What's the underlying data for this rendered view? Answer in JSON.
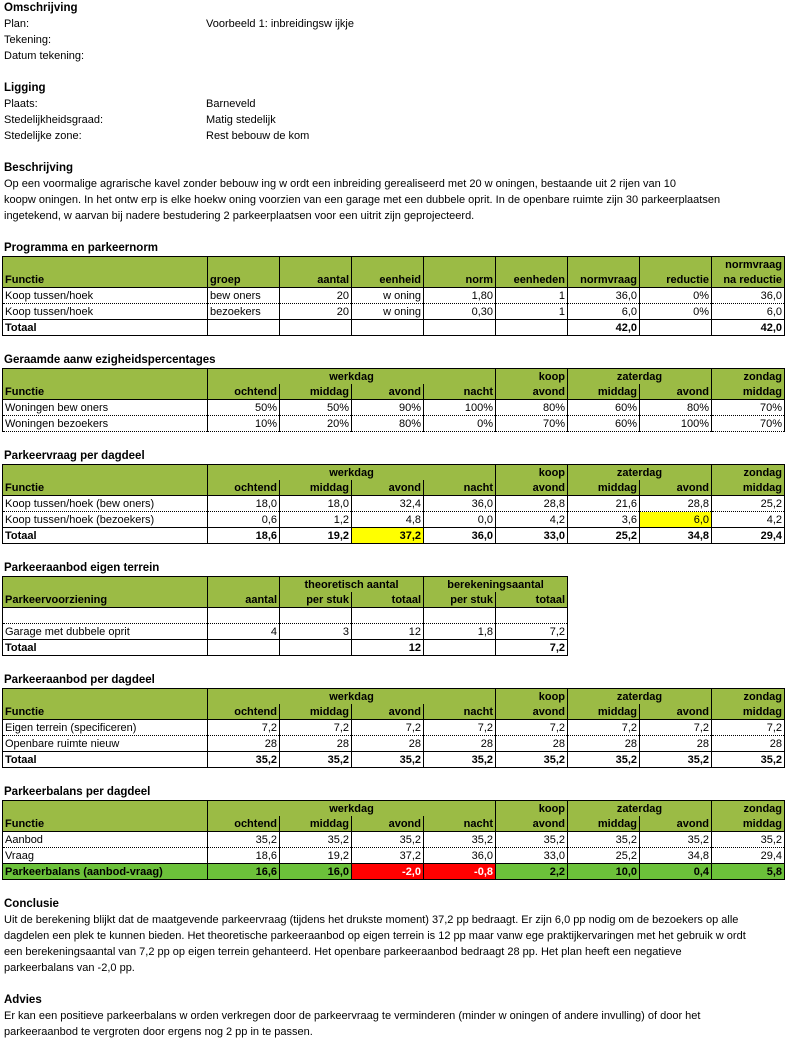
{
  "sections": [
    {
      "title": "Omschrijving",
      "fields": [
        {
          "label": "Plan:",
          "value": "Voorbeeld 1: inbreidingsw ijkje"
        },
        {
          "label": "Tekening:"
        },
        {
          "label": "Datum tekening:"
        }
      ]
    },
    {
      "title": "Ligging",
      "fields": [
        {
          "label": "Plaats:",
          "value": "Barneveld"
        },
        {
          "label": "Stedelijkheidsgraad:",
          "value": "Matig stedelijk"
        },
        {
          "label": "Stedelijke zone:",
          "value": "Rest bebouw de kom"
        }
      ]
    },
    {
      "title": "Beschrijving",
      "lines": [
        "Op een voormalige agrarische kavel zonder bebouw ing w ordt een inbreiding gerealiseerd met 20 w oningen, bestaande uit 2 rijen van 10",
        "koopw oningen. In het ontw erp is elke hoekw oning voorzien van een garage met een dubbele oprit. In de openbare ruimte zijn 30 parkeerplaatsen",
        "ingetekend, w aarvan bij nadere bestudering 2 parkeerplaatsen voor een uitrit zijn geprojecteerd."
      ]
    },
    {
      "title": "Programma en parkeernorm",
      "table": {
        "group_headers": [
          "normvraag"
        ],
        "columns": [
          "Functie",
          "groep",
          "aantal",
          "eenheid",
          "norm",
          "eenheden",
          "normvraag",
          "reductie",
          "na reductie"
        ],
        "rows": [
          [
            "Koop tussen/hoek",
            "bew oners",
            "20",
            "w oning",
            "1,80",
            "1",
            "36,0",
            "0%",
            "36,0"
          ],
          [
            "Koop tussen/hoek",
            "bezoekers",
            "20",
            "w oning",
            "0,30",
            "1",
            "6,0",
            "0%",
            "6,0"
          ],
          [
            "Totaal",
            null,
            null,
            null,
            null,
            null,
            "42,0",
            null,
            "42,0"
          ]
        ]
      }
    },
    {
      "title": "Geraamde aanw ezigheidspercentages",
      "table": {
        "group_headers": [
          "werkdag",
          "koop",
          "zaterdag",
          "zondag"
        ],
        "columns": [
          "Functie",
          "ochtend",
          "middag",
          "avond",
          "nacht",
          "avond",
          "middag",
          "avond",
          "middag"
        ],
        "rows": [
          [
            "Woningen bew oners",
            "50%",
            "50%",
            "90%",
            "100%",
            "80%",
            "60%",
            "80%",
            "70%"
          ],
          [
            "Woningen bezoekers",
            "10%",
            "20%",
            "80%",
            "0%",
            "70%",
            "60%",
            "100%",
            "70%"
          ]
        ]
      }
    },
    {
      "title": "Parkeervraag per dagdeel",
      "table": {
        "group_headers": [
          "werkdag",
          "koop",
          "zaterdag",
          "zondag"
        ],
        "columns": [
          "Functie",
          "ochtend",
          "middag",
          "avond",
          "nacht",
          "avond",
          "middag",
          "avond",
          "middag"
        ],
        "rows": [
          [
            "Koop tussen/hoek (bew oners)",
            "18,0",
            "18,0",
            "32,4",
            "36,0",
            "28,8",
            "21,6",
            "28,8",
            "25,2"
          ],
          [
            "Koop tussen/hoek (bezoekers)",
            "0,6",
            "1,2",
            "4,8",
            "0,0",
            "4,2",
            "3,6",
            "6,0",
            "4,2"
          ],
          [
            "Totaal",
            "18,6",
            "19,2",
            "37,2",
            "36,0",
            "33,0",
            "25,2",
            "34,8",
            "29,4"
          ]
        ]
      }
    },
    {
      "title": "Parkeeraanbod eigen terrein",
      "table": {
        "group_headers": [
          "theoretisch aantal",
          "berekeningsaantal"
        ],
        "columns": [
          "Parkeervoorziening",
          "aantal",
          "per stuk",
          "totaal",
          "per stuk",
          "totaal"
        ],
        "rows": [
          [
            null,
            null,
            null,
            null,
            null,
            null
          ],
          [
            "Garage met dubbele oprit",
            "4",
            "3",
            "12",
            "1,8",
            "7,2"
          ],
          [
            "Totaal",
            null,
            null,
            "12",
            null,
            "7,2"
          ]
        ]
      }
    },
    {
      "title": "Parkeeraanbod per dagdeel",
      "table": {
        "group_headers": [
          "werkdag",
          "koop",
          "zaterdag",
          "zondag"
        ],
        "columns": [
          "Functie",
          "ochtend",
          "middag",
          "avond",
          "nacht",
          "avond",
          "middag",
          "avond",
          "middag"
        ],
        "rows": [
          [
            "Eigen terrein (specificeren)",
            "7,2",
            "7,2",
            "7,2",
            "7,2",
            "7,2",
            "7,2",
            "7,2",
            "7,2"
          ],
          [
            "Openbare ruimte nieuw",
            "28",
            "28",
            "28",
            "28",
            "28",
            "28",
            "28",
            "28"
          ],
          [
            "Totaal",
            "35,2",
            "35,2",
            "35,2",
            "35,2",
            "35,2",
            "35,2",
            "35,2",
            "35,2"
          ]
        ]
      }
    },
    {
      "title": "Parkeerbalans per dagdeel",
      "table": {
        "group_headers": [
          "werkdag",
          "koop",
          "zaterdag",
          "zondag"
        ],
        "columns": [
          "Functie",
          "ochtend",
          "middag",
          "avond",
          "nacht",
          "avond",
          "middag",
          "avond",
          "middag"
        ],
        "rows": [
          [
            "Aanbod",
            "35,2",
            "35,2",
            "35,2",
            "35,2",
            "35,2",
            "35,2",
            "35,2",
            "35,2"
          ],
          [
            "Vraag",
            "18,6",
            "19,2",
            "37,2",
            "36,0",
            "33,0",
            "25,2",
            "34,8",
            "29,4"
          ],
          [
            "Parkeerbalans (aanbod-vraag)",
            "16,6",
            "16,0",
            "-2,0",
            "-0,8",
            "2,2",
            "10,0",
            "0,4",
            "5,8"
          ]
        ]
      }
    },
    {
      "title": "Conclusie",
      "lines": [
        "Uit de berekening blijkt dat de maatgevende parkeervraag (tijdens het drukste moment) 37,2 pp bedraagt. Er zijn 6,0 pp nodig om de bezoekers op alle",
        "dagdelen een plek te kunnen bieden. Het theoretische parkeeraanbod op eigen terrein is 12 pp maar vanw ege praktijkervaringen met het gebruik w ordt",
        "een berekeningsaantal van 7,2 pp op eigen terrein gehanteerd. Het openbare parkeeraanbod bedraagt 28 pp. Het plan heeft een negatieve",
        "parkeerbalans van -2,0 pp."
      ]
    },
    {
      "title": "Advies",
      "lines": [
        "Er kan een positieve parkeerbalans w orden verkregen door de parkeervraag te verminderen (minder w oningen of andere invulling) of door het",
        "parkeeraanbod te vergroten door ergens nog 2 pp in te passen."
      ]
    }
  ]
}
